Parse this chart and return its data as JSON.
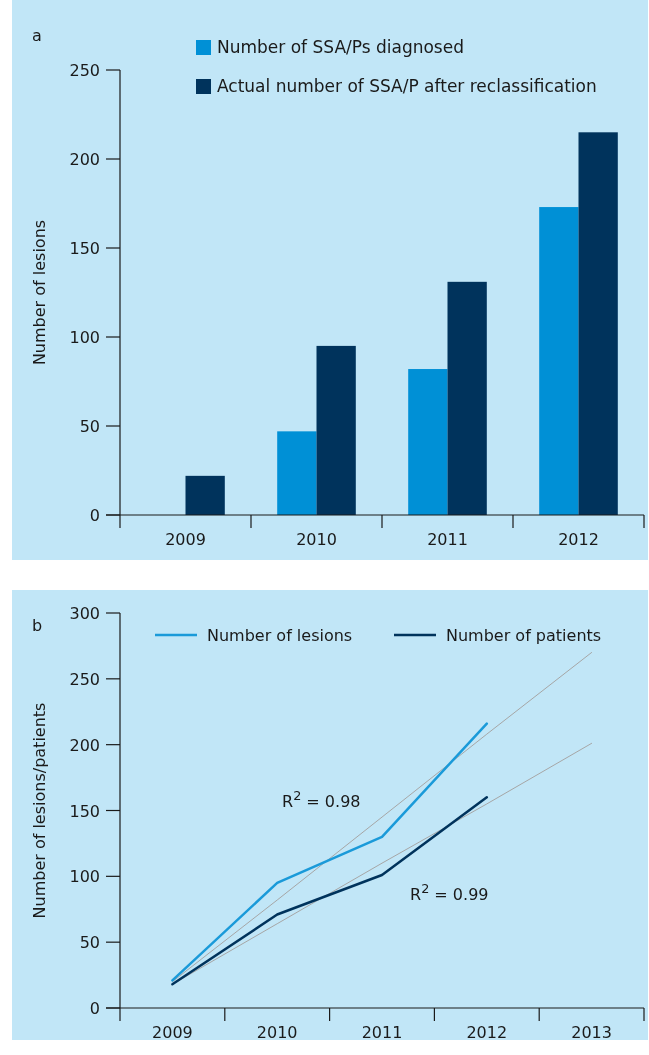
{
  "chart_data": [
    {
      "type": "bar",
      "title": "a",
      "ylabel": "Number of lesions",
      "categories": [
        "2009",
        "2010",
        "2011",
        "2012"
      ],
      "ylim": [
        0,
        250
      ],
      "yticks": [
        0,
        50,
        100,
        150,
        200,
        250
      ],
      "legend": "top right",
      "series": [
        {
          "name": "Number of SSA/Ps diagnosed",
          "color": "#0090d6",
          "values": [
            null,
            47,
            82,
            173
          ]
        },
        {
          "name": "Actual number of SSA/P  after reclassification",
          "color": "#00335c",
          "values": [
            22,
            95,
            131,
            215
          ]
        }
      ]
    },
    {
      "type": "line",
      "title": "b",
      "ylabel": "Number of lesions/patients",
      "categories": [
        "2009",
        "2010",
        "2011",
        "2012",
        "2013"
      ],
      "ylim": [
        0,
        300
      ],
      "yticks": [
        0,
        50,
        100,
        150,
        200,
        250,
        300
      ],
      "legend": "top",
      "annotations": [
        "R$^{2}$ = 0.98",
        "R$^{2}$ = 0.99"
      ],
      "series": [
        {
          "name": "Number of lesions",
          "color": "#1a9ad9",
          "values": [
            21,
            95,
            130,
            216,
            null
          ]
        },
        {
          "name": "Number of patients",
          "color": "#00335c",
          "values": [
            18,
            71,
            101,
            160,
            null
          ]
        },
        {
          "color": "#a6a6a6",
          "values": [
            20,
            82,
            145,
            208,
            270
          ]
        },
        {
          "color": "#a6a6a6",
          "values": [
            18,
            64,
            110,
            155,
            201
          ]
        }
      ]
    }
  ]
}
